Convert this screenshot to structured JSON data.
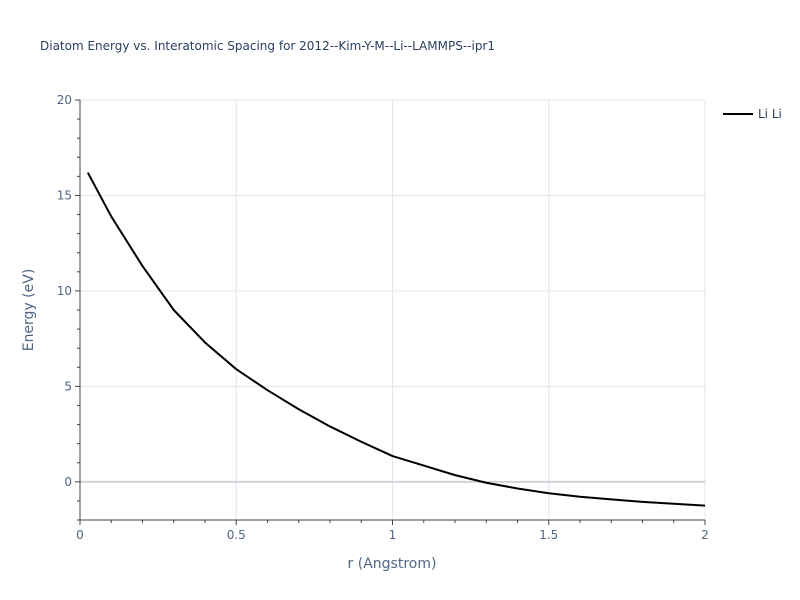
{
  "chart_data": {
    "type": "line",
    "title": "Diatom Energy vs. Interatomic Spacing for 2012--Kim-Y-M--Li--LAMMPS--ipr1",
    "xlabel": "r (Angstrom)",
    "ylabel": "Energy (eV)",
    "xlim": [
      0,
      2
    ],
    "ylim": [
      -2,
      20
    ],
    "x_ticks": [
      "0",
      "0.5",
      "1",
      "1.5",
      "2"
    ],
    "y_ticks": [
      "0",
      "5",
      "10",
      "15",
      "20"
    ],
    "grid": true,
    "legend_position": "top-right",
    "series": [
      {
        "name": "Li Li",
        "color": "#000000",
        "x": [
          0.025,
          0.1,
          0.2,
          0.3,
          0.4,
          0.5,
          0.6,
          0.7,
          0.8,
          0.9,
          1.0,
          1.1,
          1.2,
          1.3,
          1.4,
          1.5,
          1.6,
          1.7,
          1.8,
          1.9,
          2.0
        ],
        "y": [
          16.2,
          13.9,
          11.3,
          9.0,
          7.3,
          5.9,
          4.8,
          3.8,
          2.9,
          2.1,
          1.35,
          0.85,
          0.35,
          -0.05,
          -0.35,
          -0.6,
          -0.78,
          -0.92,
          -1.05,
          -1.15,
          -1.25
        ]
      }
    ]
  }
}
